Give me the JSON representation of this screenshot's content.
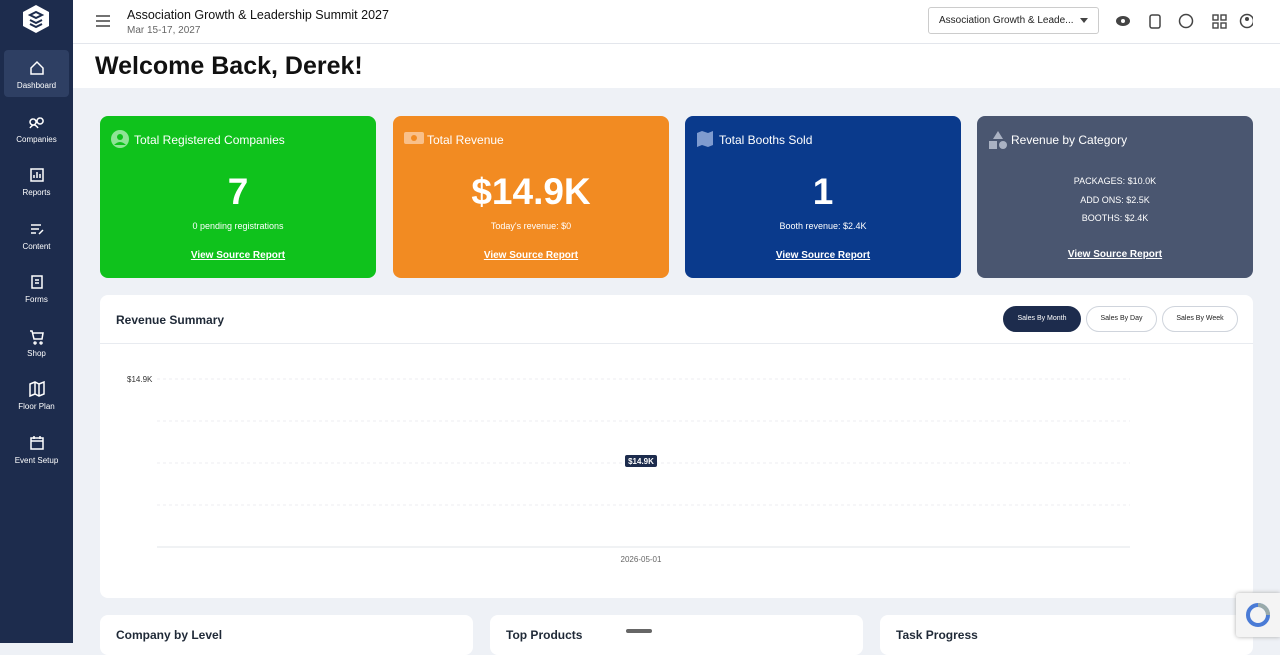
{
  "header": {
    "title": "Association Growth & Leadership Summit 2027",
    "date": "Mar 15-17, 2027",
    "event_select": "Association Growth & Leade..."
  },
  "sidebar": {
    "items": [
      "Dashboard",
      "Companies",
      "Reports",
      "Content",
      "Forms",
      "Shop",
      "Floor Plan",
      "Event Setup"
    ]
  },
  "welcome": "Welcome Back, Derek!",
  "cards": [
    {
      "title": "Total Registered Companies",
      "value": "7",
      "subtitle": "0 pending registrations",
      "link": "View Source Report"
    },
    {
      "title": "Total Revenue",
      "value": "$14.9K",
      "subtitle": "Today's revenue: $0",
      "link": "View Source Report"
    },
    {
      "title": "Total Booths Sold",
      "value": "1",
      "subtitle": "Booth revenue: $2.4K",
      "link": "View Source Report"
    },
    {
      "title": "Revenue by Category",
      "lines": [
        "PACKAGES: $10.0K",
        "ADD ONS: $2.5K",
        "BOOTHS: $2.4K"
      ],
      "link": "View Source Report"
    }
  ],
  "revenue_summary": {
    "title": "Revenue Summary",
    "buttons": [
      "Sales By Month",
      "Sales By Day",
      "Sales By Week"
    ],
    "y_tick": "$14.9K",
    "point_label": "$14.9K",
    "x_label": "2026-05-01"
  },
  "bottom": {
    "titles": [
      "Company by Level",
      "Top Products",
      "Task Progress"
    ]
  }
}
